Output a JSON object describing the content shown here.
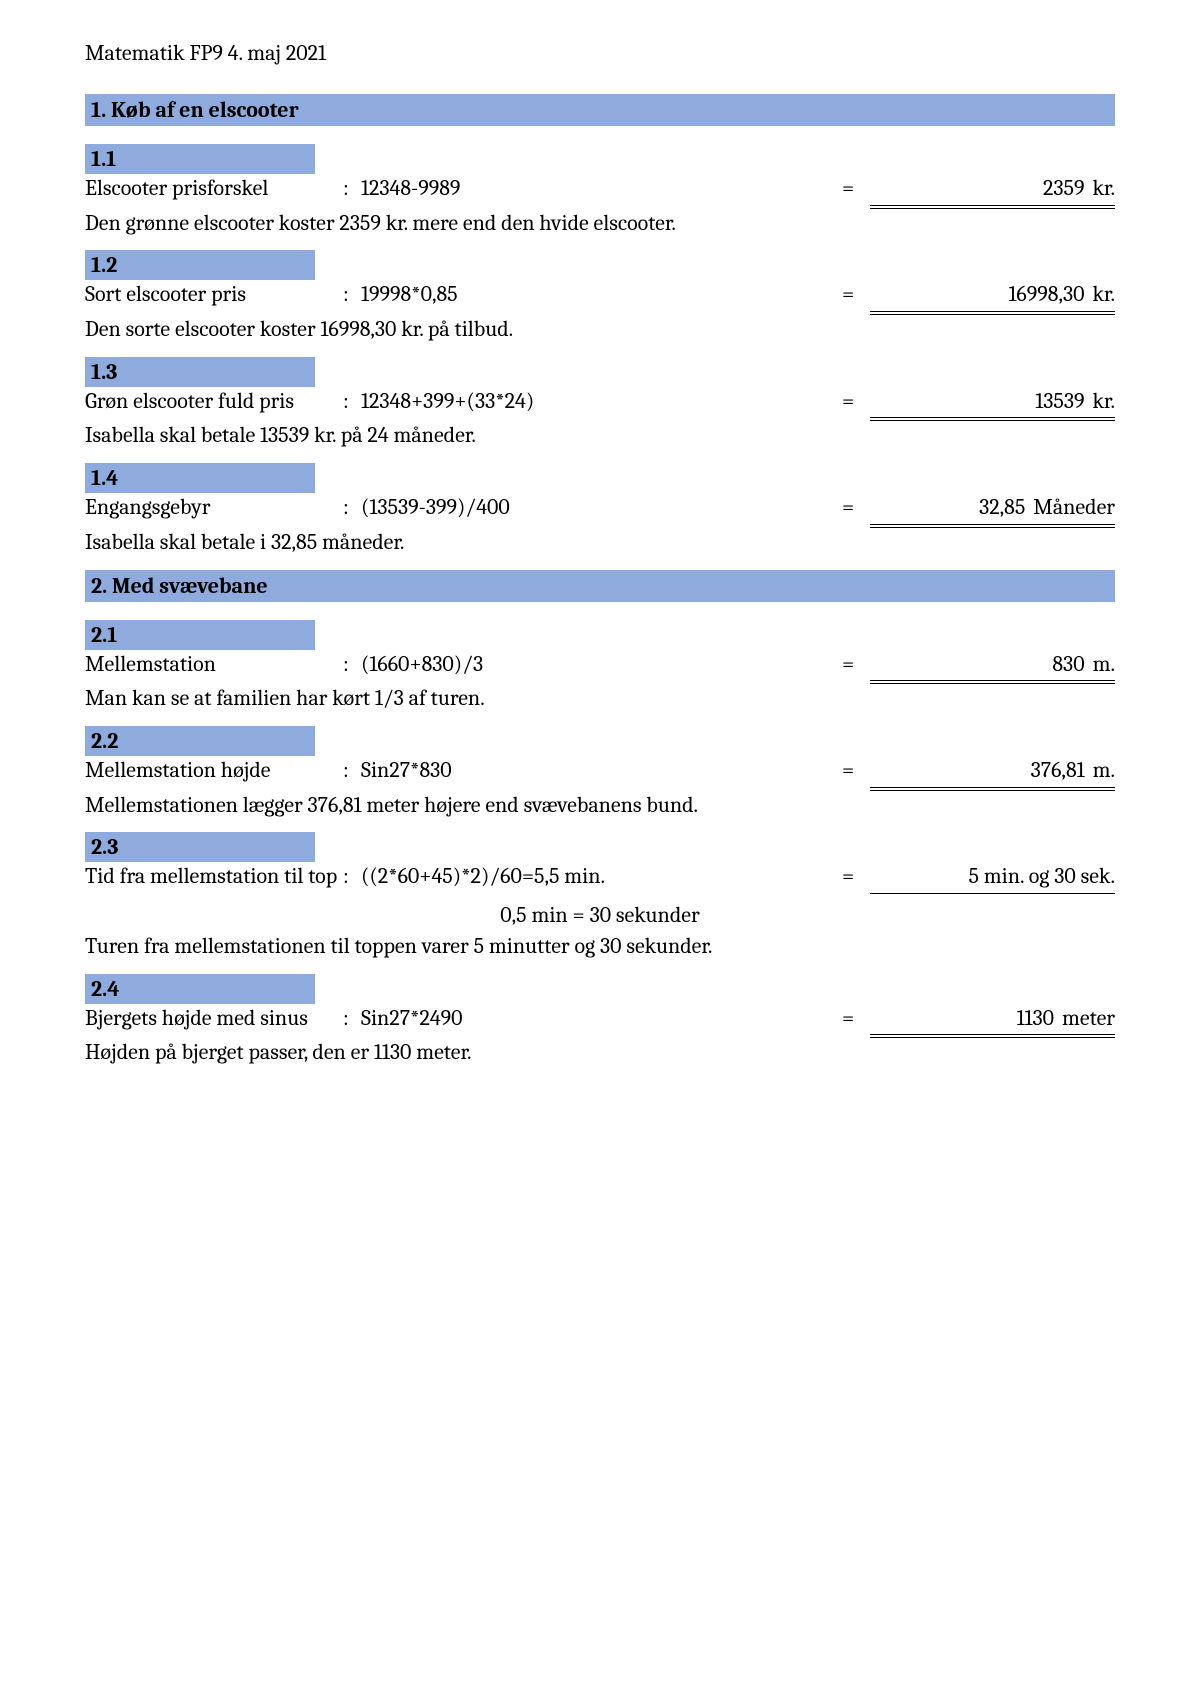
{
  "header": "Matematik FP9 4. maj 2021",
  "section1": {
    "title": "1. Køb af en elscooter",
    "q1": {
      "num": "1.1",
      "label": "Elscooter prisforskel",
      "expr": "12348-9989",
      "result": "2359",
      "unit": "kr.",
      "desc": "Den grønne elscooter koster 2359 kr. mere end den hvide elscooter."
    },
    "q2": {
      "num": "1.2",
      "label": "Sort elscooter pris",
      "expr": "19998*0,85",
      "result": "16998,30",
      "unit": "kr.",
      "desc": "Den sorte elscooter koster 16998,30 kr. på tilbud."
    },
    "q3": {
      "num": "1.3",
      "label": "Grøn elscooter fuld pris",
      "expr": "12348+399+(33*24)",
      "result": "13539",
      "unit": "kr.",
      "desc": "Isabella skal betale 13539 kr. på 24 måneder."
    },
    "q4": {
      "num": "1.4",
      "label": "Engangsgebyr",
      "expr": "(13539-399)/400",
      "result": "32,85",
      "unit": "Måneder",
      "desc": "Isabella skal betale i 32,85 måneder."
    }
  },
  "section2": {
    "title": "2. Med svævebane",
    "q1": {
      "num": "2.1",
      "label": "Mellemstation",
      "expr": "(1660+830)/3",
      "result": "830",
      "unit": "m.",
      "desc": "Man kan se at familien har kørt 1/3 af turen."
    },
    "q2": {
      "num": "2.2",
      "label": "Mellemstation højde",
      "expr": "Sin27*830",
      "result": "376,81",
      "unit": "m.",
      "desc": "Mellemstationen lægger 376,81 meter højere end svævebanens bund."
    },
    "q3": {
      "num": "2.3",
      "label": "Tid fra mellemstation til top",
      "expr": "((2*60+45)*2)/60=5,5 min.",
      "result_text": "5 min. og 30 sek.",
      "mid": "0,5 min = 30 sekunder",
      "desc": "Turen fra mellemstationen til toppen varer 5 minutter og 30 sekunder."
    },
    "q4": {
      "num": "2.4",
      "label": "Bjergets højde med sinus",
      "expr": "Sin27*2490",
      "result": "1130",
      "unit": "meter",
      "desc": "Højden på bjerget passer, den er 1130 meter."
    }
  }
}
